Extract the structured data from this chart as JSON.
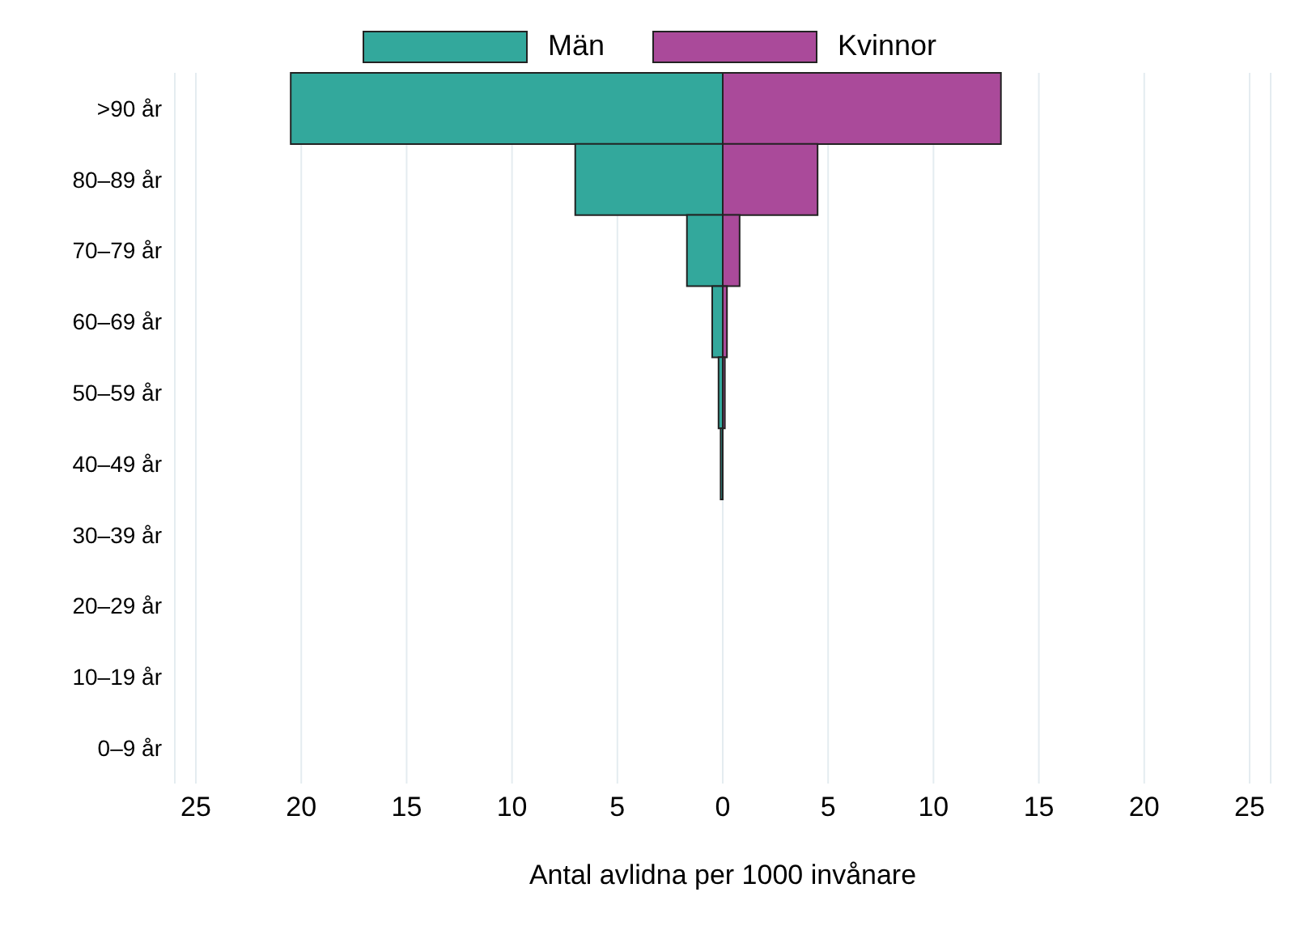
{
  "chart_data": {
    "type": "bar",
    "orientation": "horizontal",
    "stacked": true,
    "xlabel": "Antal avlidna per 1000 invånare",
    "categories": [
      ">90 år",
      "80–89 år",
      "70–79 år",
      "60–69 år",
      "50–59 år",
      "40–49 år",
      "30–39 år",
      "20–29 år",
      "10–19 år",
      "0–9 år"
    ],
    "series": [
      {
        "name": "Män",
        "color": "#33a89c",
        "values": [
          -20.5,
          -7.0,
          -1.7,
          -0.5,
          -0.2,
          -0.1,
          0,
          0,
          0,
          0
        ]
      },
      {
        "name": "Kvinnor",
        "color": "#aa4a9a",
        "values": [
          13.2,
          4.5,
          0.8,
          0.2,
          0.1,
          0,
          0,
          0,
          0,
          0
        ]
      }
    ],
    "xlim": [
      -26,
      26
    ],
    "xticks": [
      {
        "value": -25,
        "label": "25"
      },
      {
        "value": -20,
        "label": "20"
      },
      {
        "value": -15,
        "label": "15"
      },
      {
        "value": -10,
        "label": "10"
      },
      {
        "value": -5,
        "label": "5"
      },
      0,
      5,
      10,
      15,
      20,
      25
    ],
    "grid": "x",
    "legend": "top"
  }
}
